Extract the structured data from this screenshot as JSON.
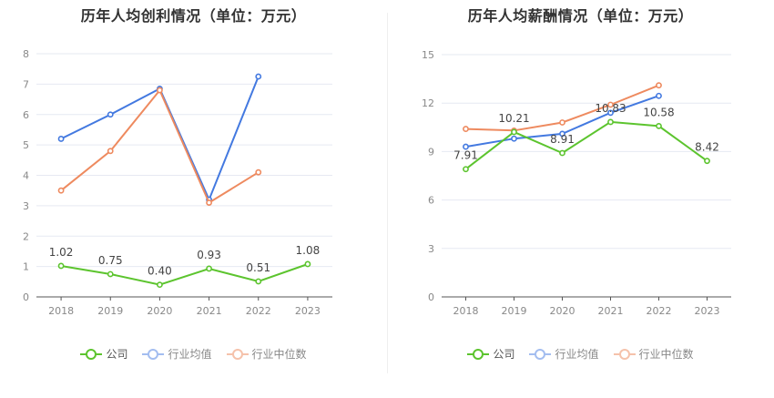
{
  "chart_data": [
    {
      "type": "line",
      "title": "历年人均创利情况（单位：万元）",
      "categories": [
        "2018",
        "2019",
        "2020",
        "2021",
        "2022",
        "2023"
      ],
      "ylim": [
        0,
        8
      ],
      "yticks": [
        0,
        1,
        2,
        3,
        4,
        5,
        6,
        7,
        8
      ],
      "grid": true,
      "series": [
        {
          "name": "公司",
          "color": "#5cc42e",
          "values": [
            1.02,
            0.75,
            0.4,
            0.93,
            0.51,
            1.08
          ],
          "labels": [
            "1.02",
            "0.75",
            "0.40",
            "0.93",
            "0.51",
            "1.08"
          ]
        },
        {
          "name": "行业均值",
          "color": "#4379e0",
          "values": [
            5.2,
            6.0,
            6.85,
            3.2,
            7.25,
            null
          ]
        },
        {
          "name": "行业中位数",
          "color": "#ee8a5f",
          "values": [
            3.5,
            4.8,
            6.8,
            3.1,
            4.1,
            null
          ]
        }
      ],
      "legend_position": "bottom"
    },
    {
      "type": "line",
      "title": "历年人均薪酬情况（单位：万元）",
      "categories": [
        "2018",
        "2019",
        "2020",
        "2021",
        "2022",
        "2023"
      ],
      "ylim": [
        0,
        15
      ],
      "yticks": [
        0,
        3,
        6,
        9,
        12,
        15
      ],
      "grid": true,
      "series": [
        {
          "name": "公司",
          "color": "#5cc42e",
          "values": [
            7.91,
            10.21,
            8.91,
            10.83,
            10.58,
            8.42
          ],
          "labels": [
            "7.91",
            "10.21",
            "8.91",
            "10.83",
            "10.58",
            "8.42"
          ]
        },
        {
          "name": "行业均值",
          "color": "#4379e0",
          "values": [
            9.3,
            9.8,
            10.1,
            11.4,
            12.45,
            null
          ]
        },
        {
          "name": "行业中位数",
          "color": "#ee8a5f",
          "values": [
            10.4,
            10.3,
            10.8,
            11.9,
            13.1,
            null
          ]
        }
      ],
      "legend_position": "bottom"
    }
  ],
  "legend_labels": [
    "公司",
    "行业均值",
    "行业中位数"
  ]
}
